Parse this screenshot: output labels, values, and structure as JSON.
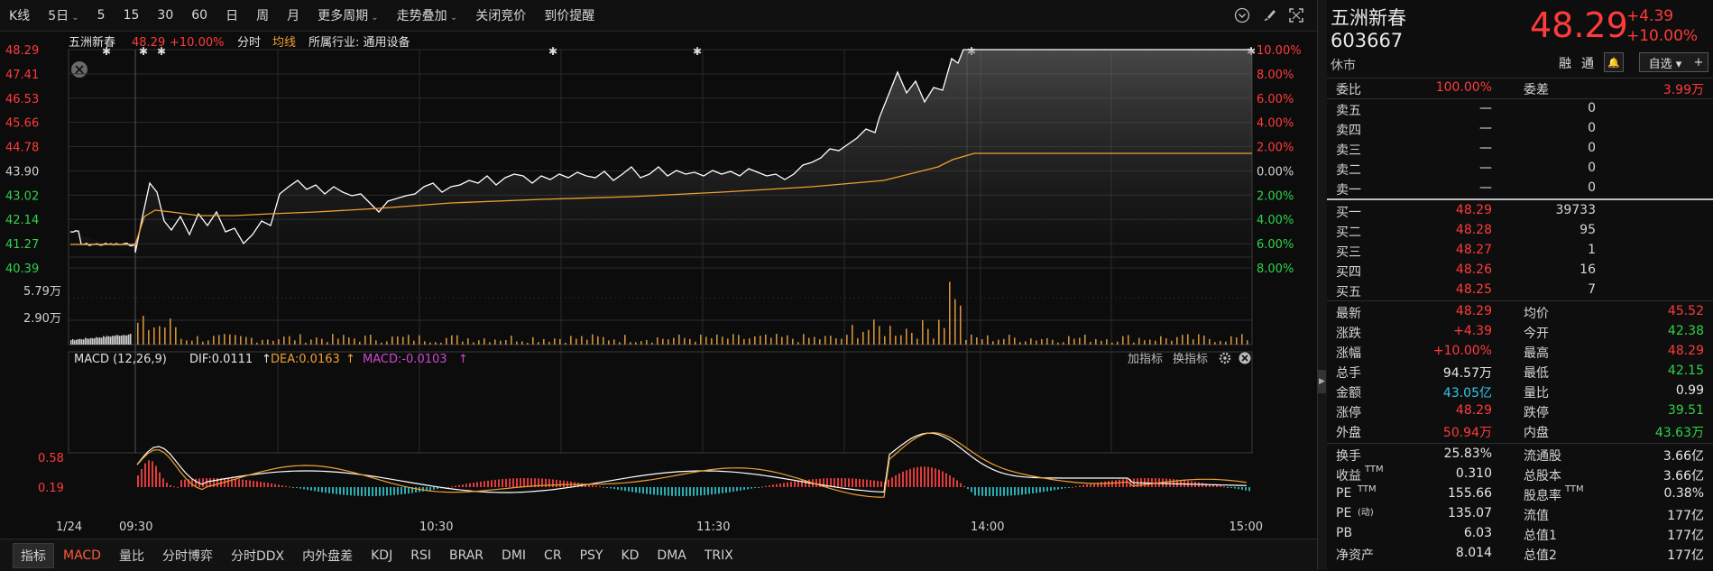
{
  "toolbar": {
    "items": [
      "K线",
      "5日",
      "5",
      "15",
      "30",
      "60",
      "日",
      "周",
      "月",
      "更多周期",
      "走势叠加",
      "关闭竞价",
      "到价提醒"
    ]
  },
  "chart": {
    "header": {
      "name": "五洲新春",
      "price": "48.29",
      "pct": "+10.00%",
      "mode": "分时",
      "avg_label": "均线",
      "industry": "所属行业: 通用设备"
    },
    "left_axis": [
      "48.29",
      "47.41",
      "46.53",
      "45.66",
      "44.78",
      "43.90",
      "43.02",
      "42.14",
      "41.27",
      "40.39"
    ],
    "right_axis": [
      "10.00%",
      "8.00%",
      "6.00%",
      "4.00%",
      "2.00%",
      "0.00%",
      "2.00%",
      "4.00%",
      "6.00%",
      "8.00%"
    ],
    "volume_axis": [
      "5.79万",
      "2.90万"
    ],
    "macd_axis": [
      "0.58",
      "0.19"
    ],
    "macd_header": {
      "name": "MACD (12,26,9)",
      "dif": "DIF:0.0111",
      "dea": "DEA:0.0163",
      "macd": "MACD:-0.0103"
    },
    "macd_tools": [
      "加指标",
      "换指标"
    ],
    "time_labels": [
      "1/24",
      "09:30",
      "10:30",
      "11:30",
      "14:00",
      "15:00"
    ],
    "colors": {
      "up": "#ff3b3b",
      "down": "#2fd34a",
      "price_line": "#ffffff",
      "avg_line": "#f0a030",
      "volume": "#d2913c",
      "macd_up": "#e03a3a",
      "macd_down": "#2aaeb4"
    }
  },
  "bottom_tabs": [
    "指标",
    "MACD",
    "量比",
    "分时博弈",
    "分时DDX",
    "内外盘差",
    "KDJ",
    "RSI",
    "BRAR",
    "DMI",
    "CR",
    "PSY",
    "KD",
    "DMA",
    "TRIX"
  ],
  "panel": {
    "name": "五洲新春",
    "code": "603667",
    "status": "休市",
    "price": "48.29",
    "change": "+4.39",
    "change_pct": "+10.00%",
    "btn_rong": "融",
    "btn_tong": "通",
    "btn_bell": "🔔",
    "btn_zixuan": "自选 ▾",
    "btn_plus": "+",
    "weibi_label": "委比",
    "weibi": "100.00%",
    "weicha_label": "委差",
    "weicha": "3.99万",
    "sells": [
      {
        "label": "卖五",
        "price": "—",
        "vol": "0"
      },
      {
        "label": "卖四",
        "price": "—",
        "vol": "0"
      },
      {
        "label": "卖三",
        "price": "—",
        "vol": "0"
      },
      {
        "label": "卖二",
        "price": "—",
        "vol": "0"
      },
      {
        "label": "卖一",
        "price": "—",
        "vol": "0"
      }
    ],
    "buys": [
      {
        "label": "买一",
        "price": "48.29",
        "vol": "39733"
      },
      {
        "label": "买二",
        "price": "48.28",
        "vol": "95"
      },
      {
        "label": "买三",
        "price": "48.27",
        "vol": "1"
      },
      {
        "label": "买四",
        "price": "48.26",
        "vol": "16"
      },
      {
        "label": "买五",
        "price": "48.25",
        "vol": "7"
      }
    ],
    "stats": [
      {
        "l1": "最新",
        "v1": "48.29",
        "c1": "red",
        "l2": "均价",
        "v2": "45.52",
        "c2": "red"
      },
      {
        "l1": "涨跌",
        "v1": "+4.39",
        "c1": "red",
        "l2": "今开",
        "v2": "42.38",
        "c2": "green"
      },
      {
        "l1": "涨幅",
        "v1": "+10.00%",
        "c1": "red",
        "l2": "最高",
        "v2": "48.29",
        "c2": "red"
      },
      {
        "l1": "总手",
        "v1": "94.57万",
        "c1": "white",
        "l2": "最低",
        "v2": "42.15",
        "c2": "green"
      },
      {
        "l1": "金额",
        "v1": "43.05亿",
        "c1": "cyan",
        "l2": "量比",
        "v2": "0.99",
        "c2": "white"
      },
      {
        "l1": "涨停",
        "v1": "48.29",
        "c1": "red",
        "l2": "跌停",
        "v2": "39.51",
        "c2": "green"
      },
      {
        "l1": "外盘",
        "v1": "50.94万",
        "c1": "red",
        "l2": "内盘",
        "v2": "43.63万",
        "c2": "green"
      }
    ],
    "fund": [
      {
        "l1": "换手",
        "v1": "25.83%",
        "l2": "流通股",
        "v2": "3.66亿"
      },
      {
        "l1": "收益",
        "s1": "TTM",
        "v1": "0.310",
        "l2": "总股本",
        "v2": "3.66亿"
      },
      {
        "l1": "PE",
        "s1": "TTM",
        "v1": "155.66",
        "l2": "股息率",
        "s2": "TTM",
        "v2": "0.38%"
      },
      {
        "l1": "PE",
        "s1": "(动)",
        "v1": "135.07",
        "l2": "流值",
        "v2": "177亿"
      },
      {
        "l1": "PB",
        "v1": "6.03",
        "l2": "总值1",
        "v2": "177亿"
      },
      {
        "l1": "净资产",
        "v1": "8.014",
        "l2": "总值2",
        "v2": "177亿"
      }
    ]
  }
}
